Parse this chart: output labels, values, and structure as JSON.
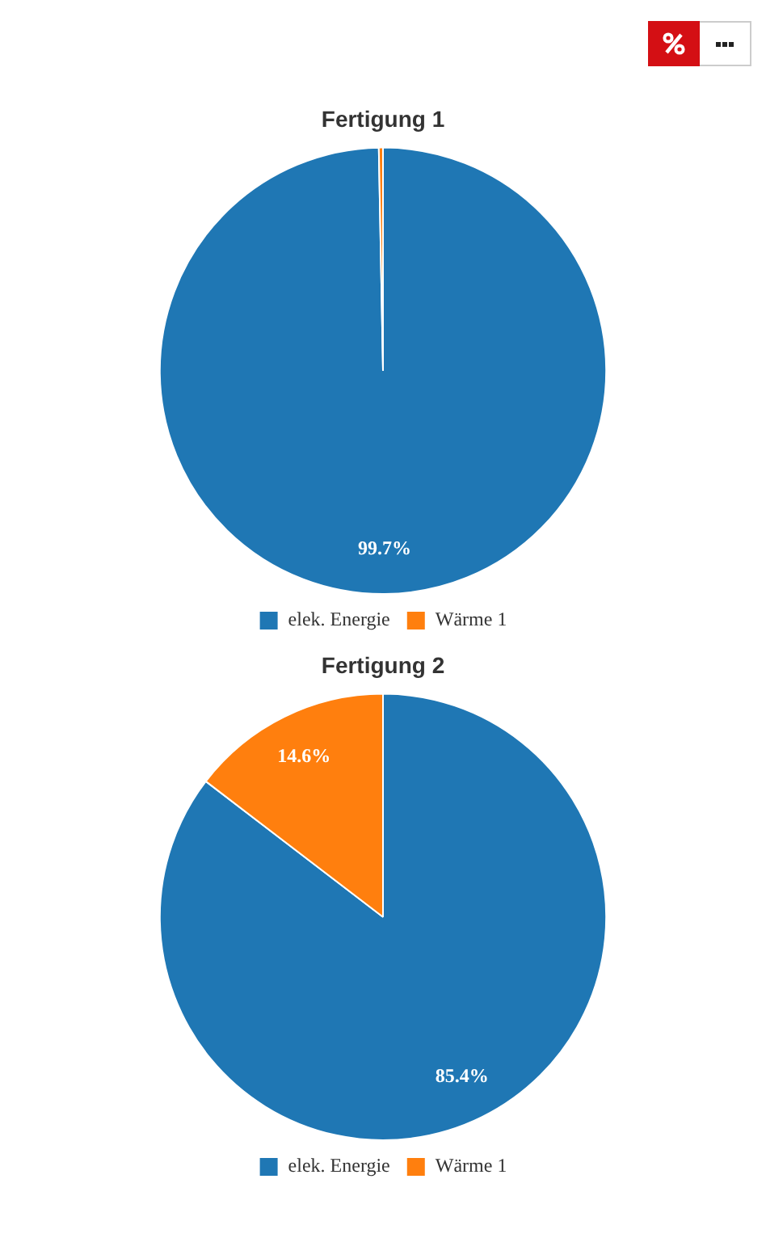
{
  "chart_data": [
    {
      "type": "pie",
      "title": "Fertigung 1",
      "categories": [
        "elek. Energie",
        "Wärme 1"
      ],
      "values": [
        99.7,
        0.3
      ],
      "colors": [
        "#1f77b4",
        "#ff7f0e"
      ],
      "value_labels": [
        "99.7%",
        null
      ],
      "legend": "bottom"
    },
    {
      "type": "pie",
      "title": "Fertigung 2",
      "categories": [
        "elek. Energie",
        "Wärme 1"
      ],
      "values": [
        85.4,
        14.6
      ],
      "colors": [
        "#1f77b4",
        "#ff7f0e"
      ],
      "value_labels": [
        "85.4%",
        "14.6%"
      ],
      "legend": "bottom"
    }
  ]
}
